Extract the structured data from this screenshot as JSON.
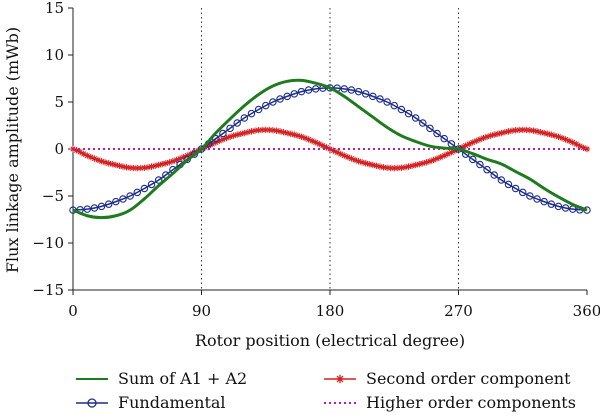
{
  "chart_data": {
    "type": "line",
    "title": "",
    "xlabel": "Rotor position (electrical degree)",
    "ylabel": "Flux linkage amplitude (mWb)",
    "xlim": [
      0,
      360
    ],
    "ylim": [
      -15,
      15
    ],
    "xticks": [
      0,
      90,
      180,
      270,
      360
    ],
    "yticks": [
      -15,
      -10,
      -5,
      0,
      5,
      10,
      15
    ],
    "grid": "dotted vertical lines at 90, 180, 270",
    "legend_position": "bottom",
    "x": [
      0,
      10,
      20,
      30,
      40,
      50,
      60,
      70,
      80,
      90,
      100,
      110,
      120,
      130,
      140,
      150,
      160,
      170,
      180,
      190,
      200,
      210,
      220,
      230,
      240,
      250,
      260,
      270,
      280,
      290,
      300,
      310,
      320,
      330,
      340,
      350,
      360
    ],
    "series": [
      {
        "name": "Sum of A1 + A2",
        "color": "#1e7b1e",
        "marker": "none",
        "values": [
          -6.5,
          -7.1,
          -7.3,
          -7.1,
          -6.5,
          -5.3,
          -3.9,
          -2.6,
          -1.2,
          0,
          1.7,
          3.2,
          4.6,
          5.8,
          6.7,
          7.2,
          7.3,
          7.0,
          6.5,
          5.6,
          4.5,
          3.4,
          2.3,
          1.4,
          0.8,
          0.3,
          0.1,
          0,
          -0.5,
          -1.1,
          -1.6,
          -2.4,
          -3.2,
          -4.2,
          -5.1,
          -5.9,
          -6.5
        ]
      },
      {
        "name": "Fundamental",
        "color": "#1c2d8c",
        "marker": "circle",
        "values": [
          -6.5,
          -6.4,
          -6.1,
          -5.6,
          -5.0,
          -4.2,
          -3.3,
          -2.2,
          -1.1,
          0,
          1.1,
          2.2,
          3.3,
          4.2,
          5.0,
          5.6,
          6.1,
          6.4,
          6.5,
          6.4,
          6.1,
          5.6,
          5.0,
          4.2,
          3.3,
          2.2,
          1.1,
          0,
          -1.1,
          -2.2,
          -3.3,
          -4.2,
          -5.0,
          -5.6,
          -6.1,
          -6.4,
          -6.5
        ]
      },
      {
        "name": "Second order component",
        "color": "#d42020",
        "marker": "star",
        "values": [
          0,
          -0.7,
          -1.3,
          -1.7,
          -2.0,
          -2.0,
          -1.7,
          -1.3,
          -0.7,
          0,
          0.7,
          1.3,
          1.7,
          2.0,
          2.0,
          1.7,
          1.3,
          0.7,
          0,
          -0.7,
          -1.3,
          -1.7,
          -2.0,
          -2.0,
          -1.7,
          -1.3,
          -0.7,
          0,
          0.7,
          1.3,
          1.7,
          2.0,
          2.0,
          1.7,
          1.3,
          0.7,
          0
        ]
      },
      {
        "name": "Higher order components",
        "color": "#b01fb0",
        "marker": "dotted",
        "values": [
          0,
          0,
          0,
          0,
          0,
          0,
          0,
          0,
          0,
          0,
          0,
          0,
          0,
          0,
          0,
          0,
          0,
          0,
          0,
          0,
          0,
          0,
          0,
          0,
          0,
          0,
          0,
          0,
          0,
          0,
          0,
          0,
          0,
          0,
          0,
          0,
          0
        ]
      }
    ]
  }
}
